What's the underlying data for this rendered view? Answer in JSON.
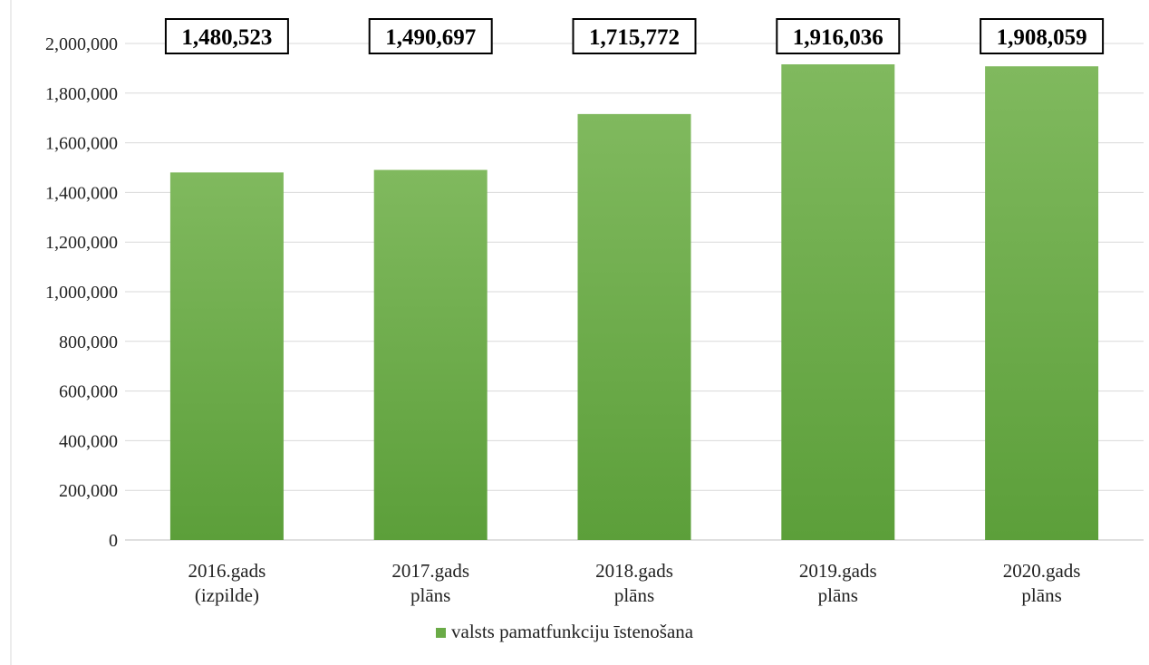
{
  "chart_data": {
    "type": "bar",
    "categories": [
      [
        "2016.gads",
        "(izpilde)"
      ],
      [
        "2017.gads",
        "plāns"
      ],
      [
        "2018.gads",
        "plāns"
      ],
      [
        "2019.gads",
        "plāns"
      ],
      [
        "2020.gads",
        "plāns"
      ]
    ],
    "series": [
      {
        "name": "valsts pamatfunkciju īstenošana",
        "values": [
          1480523,
          1490697,
          1715772,
          1916036,
          1908059
        ],
        "color": "#6aab47"
      }
    ],
    "data_labels": [
      "1,480,523",
      "1,490,697",
      "1,715,772",
      "1,916,036",
      "1,908,059"
    ],
    "ylim": [
      0,
      2000000
    ],
    "yticks": [
      0,
      200000,
      400000,
      600000,
      800000,
      1000000,
      1200000,
      1400000,
      1600000,
      1800000,
      2000000
    ],
    "ytick_labels": [
      "0",
      "200,000",
      "400,000",
      "600,000",
      "800,000",
      "1,000,000",
      "1,200,000",
      "1,400,000",
      "1,600,000",
      "1,800,000",
      "2,000,000"
    ],
    "grid": true,
    "legend": "bottom",
    "title": "",
    "xlabel": "",
    "ylabel": ""
  }
}
